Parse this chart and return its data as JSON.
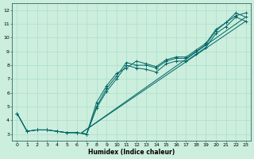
{
  "title": "",
  "xlabel": "Humidex (Indice chaleur)",
  "bg_color": "#cceedd",
  "grid_color": "#aaddcc",
  "line_color": "#006666",
  "xlim": [
    -0.5,
    23.5
  ],
  "ylim": [
    2.5,
    12.5
  ],
  "xticks": [
    0,
    1,
    2,
    3,
    4,
    5,
    6,
    7,
    8,
    9,
    10,
    11,
    12,
    13,
    14,
    15,
    16,
    17,
    18,
    19,
    20,
    21,
    22,
    23
  ],
  "yticks": [
    3,
    4,
    5,
    6,
    7,
    8,
    9,
    10,
    11,
    12
  ],
  "series_main": [
    4.5,
    3.2,
    3.3,
    3.3,
    3.2,
    3.1,
    3.1,
    3.0,
    5.0,
    6.3,
    7.2,
    8.2,
    8.0,
    8.0,
    7.8,
    8.3,
    8.5,
    8.5,
    9.0,
    9.5,
    10.5,
    11.1,
    11.8,
    11.5
  ],
  "series_upper": [
    4.5,
    3.2,
    3.3,
    3.3,
    3.2,
    3.1,
    3.1,
    3.0,
    5.3,
    6.5,
    7.4,
    7.8,
    8.3,
    8.1,
    7.9,
    8.4,
    8.6,
    8.6,
    9.1,
    9.6,
    10.6,
    11.1,
    11.6,
    11.8
  ],
  "series_lower": [
    4.5,
    3.2,
    3.3,
    3.3,
    3.2,
    3.1,
    3.1,
    3.0,
    4.9,
    6.1,
    7.0,
    8.0,
    7.8,
    7.7,
    7.5,
    8.1,
    8.3,
    8.3,
    8.8,
    9.3,
    10.3,
    10.8,
    11.5,
    11.2
  ],
  "trend1_x": [
    6.5,
    23
  ],
  "trend1_y": [
    3.1,
    11.5
  ],
  "trend2_x": [
    6.5,
    23
  ],
  "trend2_y": [
    3.1,
    11.2
  ],
  "xlabel_fontsize": 5.5,
  "tick_fontsize": 4.5
}
